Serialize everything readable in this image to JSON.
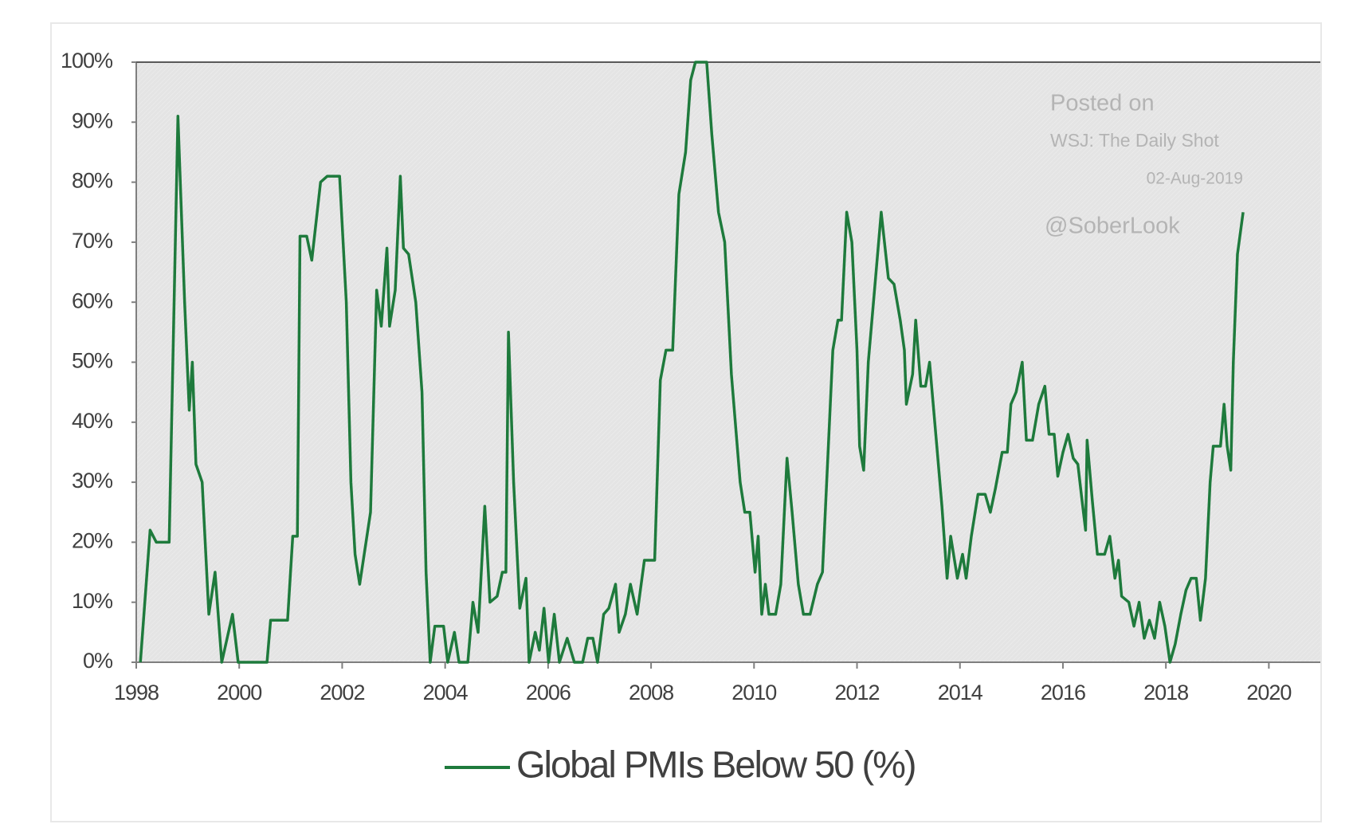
{
  "chart_data": {
    "type": "line",
    "annotations": [
      "Posted on",
      "WSJ: The Daily Shot",
      "02-Aug-2019",
      "@SoberLook"
    ],
    "x": [
      1998.08,
      1998.27,
      1998.39,
      1998.64,
      1998.81,
      1998.94,
      1999.03,
      1999.09,
      1999.16,
      1999.28,
      1999.41,
      1999.53,
      1999.66,
      1999.87,
      1999.98,
      2000.54,
      2000.61,
      2000.94,
      2001.04,
      2001.13,
      2001.18,
      2001.31,
      2001.41,
      2001.58,
      2001.71,
      2001.95,
      2002.08,
      2002.17,
      2002.25,
      2002.34,
      2002.55,
      2002.67,
      2002.76,
      2002.87,
      2002.92,
      2003.03,
      2003.13,
      2003.19,
      2003.29,
      2003.43,
      2003.55,
      2003.63,
      2003.71,
      2003.8,
      2003.97,
      2004.05,
      2004.18,
      2004.27,
      2004.44,
      2004.54,
      2004.64,
      2004.77,
      2004.87,
      2005.01,
      2005.11,
      2005.18,
      2005.23,
      2005.33,
      2005.45,
      2005.57,
      2005.63,
      2005.75,
      2005.83,
      2005.92,
      2006.01,
      2006.12,
      2006.22,
      2006.37,
      2006.51,
      2006.67,
      2006.77,
      2006.87,
      2006.96,
      2007.08,
      2007.18,
      2007.31,
      2007.38,
      2007.5,
      2007.6,
      2007.73,
      2007.87,
      2008.07,
      2008.18,
      2008.29,
      2008.42,
      2008.54,
      2008.67,
      2008.77,
      2008.86,
      2009.08,
      2009.18,
      2009.31,
      2009.43,
      2009.56,
      2009.73,
      2009.82,
      2009.92,
      2010.02,
      2010.08,
      2010.15,
      2010.22,
      2010.29,
      2010.42,
      2010.52,
      2010.64,
      2010.74,
      2010.86,
      2010.96,
      2011.09,
      2011.23,
      2011.33,
      2011.53,
      2011.63,
      2011.7,
      2011.8,
      2011.9,
      2012.0,
      2012.05,
      2012.13,
      2012.22,
      2012.34,
      2012.47,
      2012.61,
      2012.72,
      2012.84,
      2012.92,
      2012.96,
      2013.08,
      2013.14,
      2013.24,
      2013.33,
      2013.41,
      2013.55,
      2013.65,
      2013.75,
      2013.82,
      2013.95,
      2014.05,
      2014.12,
      2014.22,
      2014.35,
      2014.49,
      2014.59,
      2014.69,
      2014.82,
      2014.92,
      2014.99,
      2015.09,
      2015.21,
      2015.29,
      2015.41,
      2015.53,
      2015.65,
      2015.73,
      2015.83,
      2015.9,
      2016.0,
      2016.1,
      2016.2,
      2016.29,
      2016.37,
      2016.44,
      2016.47,
      2016.57,
      2016.67,
      2016.81,
      2016.91,
      2017.01,
      2017.08,
      2017.14,
      2017.28,
      2017.38,
      2017.48,
      2017.58,
      2017.68,
      2017.78,
      2017.88,
      2017.98,
      2018.08,
      2018.18,
      2018.29,
      2018.39,
      2018.49,
      2018.59,
      2018.67,
      2018.77,
      2018.86,
      2018.92,
      2019.06,
      2019.13,
      2019.19,
      2019.26,
      2019.31,
      2019.39,
      2019.5
    ],
    "series": [
      {
        "name": "Global PMIs Below 50 (%)",
        "color": "#1e7a3c",
        "values": [
          0,
          22,
          20,
          20,
          91,
          60,
          42,
          50,
          33,
          30,
          8,
          15,
          0,
          8,
          0,
          0,
          7,
          7,
          21,
          21,
          71,
          71,
          67,
          80,
          81,
          81,
          60,
          30,
          18,
          13,
          25,
          62,
          56,
          69,
          56,
          62,
          81,
          69,
          68,
          60,
          45,
          15,
          0,
          6,
          6,
          0,
          5,
          0,
          0,
          10,
          5,
          26,
          10,
          11,
          15,
          15,
          55,
          30,
          9,
          14,
          0,
          5,
          2,
          9,
          0,
          8,
          0,
          4,
          0,
          0,
          4,
          4,
          0,
          8,
          9,
          13,
          5,
          8,
          13,
          8,
          17,
          17,
          47,
          52,
          52,
          78,
          85,
          97,
          100,
          100,
          88,
          75,
          70,
          48,
          30,
          25,
          25,
          15,
          21,
          8,
          13,
          8,
          8,
          13,
          34,
          25,
          13,
          8,
          8,
          13,
          15,
          52,
          57,
          57,
          75,
          70,
          52,
          36,
          32,
          50,
          62,
          75,
          64,
          63,
          57,
          52,
          43,
          48,
          57,
          46,
          46,
          50,
          36,
          26,
          14,
          21,
          14,
          18,
          14,
          21,
          28,
          28,
          25,
          29,
          35,
          35,
          43,
          45,
          50,
          37,
          37,
          43,
          46,
          38,
          38,
          31,
          35,
          38,
          34,
          33,
          27,
          22,
          37,
          27,
          18,
          18,
          21,
          14,
          17,
          11,
          10,
          6,
          10,
          4,
          7,
          4,
          10,
          6,
          0,
          3,
          8,
          12,
          14,
          14,
          7,
          14,
          30,
          36,
          36,
          43,
          36,
          32,
          50,
          68,
          75
        ]
      }
    ],
    "xlim": [
      1998,
      2021
    ],
    "xticks": [
      1998,
      2000,
      2002,
      2004,
      2006,
      2008,
      2010,
      2012,
      2014,
      2016,
      2018,
      2020
    ],
    "ylim": [
      0,
      100
    ],
    "yticks": [
      {
        "value": 0,
        "label": "0%"
      },
      {
        "value": 10,
        "label": "10%"
      },
      {
        "value": 20,
        "label": "20%"
      },
      {
        "value": 30,
        "label": "30%"
      },
      {
        "value": 40,
        "label": "40%"
      },
      {
        "value": 50,
        "label": "50%"
      },
      {
        "value": 60,
        "label": "60%"
      },
      {
        "value": 70,
        "label": "70%"
      },
      {
        "value": 80,
        "label": "80%"
      },
      {
        "value": 90,
        "label": "90%"
      },
      {
        "value": 100,
        "label": "100%"
      }
    ],
    "grid": false,
    "legend": "bottom"
  }
}
